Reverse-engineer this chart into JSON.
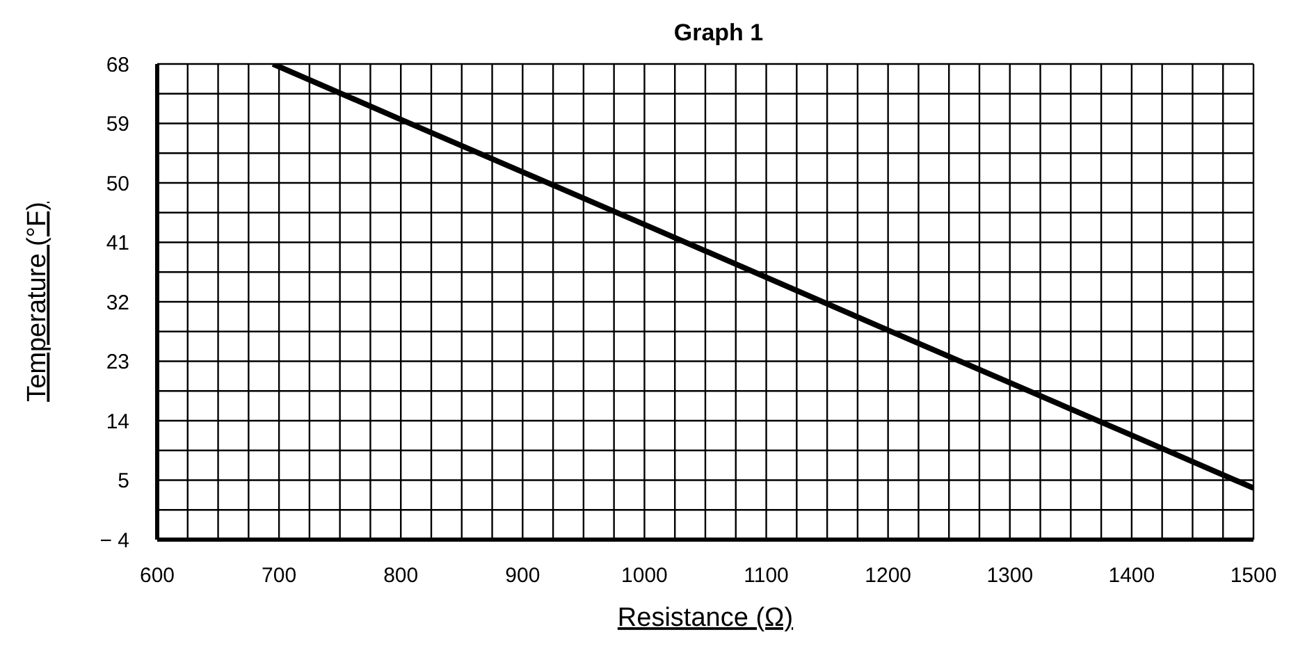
{
  "chart_data": {
    "type": "line",
    "title": "Graph 1",
    "xlabel": "Resistance (Ω)",
    "ylabel": "Temperature (°F)",
    "x": [
      695,
      800,
      1000,
      1200,
      1400,
      1500
    ],
    "series": [
      {
        "color": "#000000",
        "values": [
          68,
          59.6,
          43.7,
          27.7,
          11.8,
          3.8
        ]
      }
    ],
    "xlim": [
      600,
      1500
    ],
    "xticks": [
      600,
      {
        "value": 625,
        "label": null
      },
      {
        "value": 650,
        "label": null
      },
      {
        "value": 675,
        "label": null
      },
      700,
      {
        "value": 725,
        "label": null
      },
      {
        "value": 750,
        "label": null
      },
      {
        "value": 775,
        "label": null
      },
      800,
      {
        "value": 825,
        "label": null
      },
      {
        "value": 850,
        "label": null
      },
      {
        "value": 875,
        "label": null
      },
      900,
      {
        "value": 925,
        "label": null
      },
      {
        "value": 950,
        "label": null
      },
      {
        "value": 975,
        "label": null
      },
      1000,
      {
        "value": 1025,
        "label": null
      },
      {
        "value": 1050,
        "label": null
      },
      {
        "value": 1075,
        "label": null
      },
      1100,
      {
        "value": 1125,
        "label": null
      },
      {
        "value": 1150,
        "label": null
      },
      {
        "value": 1175,
        "label": null
      },
      1200,
      {
        "value": 1225,
        "label": null
      },
      {
        "value": 1250,
        "label": null
      },
      {
        "value": 1275,
        "label": null
      },
      1300,
      {
        "value": 1325,
        "label": null
      },
      {
        "value": 1350,
        "label": null
      },
      {
        "value": 1375,
        "label": null
      },
      1400,
      {
        "value": 1425,
        "label": null
      },
      {
        "value": 1450,
        "label": null
      },
      {
        "value": 1475,
        "label": null
      },
      1500
    ],
    "ylim": [
      -4,
      68
    ],
    "yticks": [
      {
        "value": -4,
        "label": "− 4"
      },
      {
        "value": 0.5,
        "label": null
      },
      5,
      {
        "value": 9.5,
        "label": null
      },
      14,
      {
        "value": 18.5,
        "label": null
      },
      23,
      {
        "value": 27.5,
        "label": null
      },
      32,
      {
        "value": 36.5,
        "label": null
      },
      41,
      {
        "value": 45.5,
        "label": null
      },
      50,
      {
        "value": 54.5,
        "label": null
      },
      59,
      {
        "value": 63.5,
        "label": null
      },
      68
    ],
    "grid": true,
    "marker": "none",
    "line_style": "solid"
  }
}
